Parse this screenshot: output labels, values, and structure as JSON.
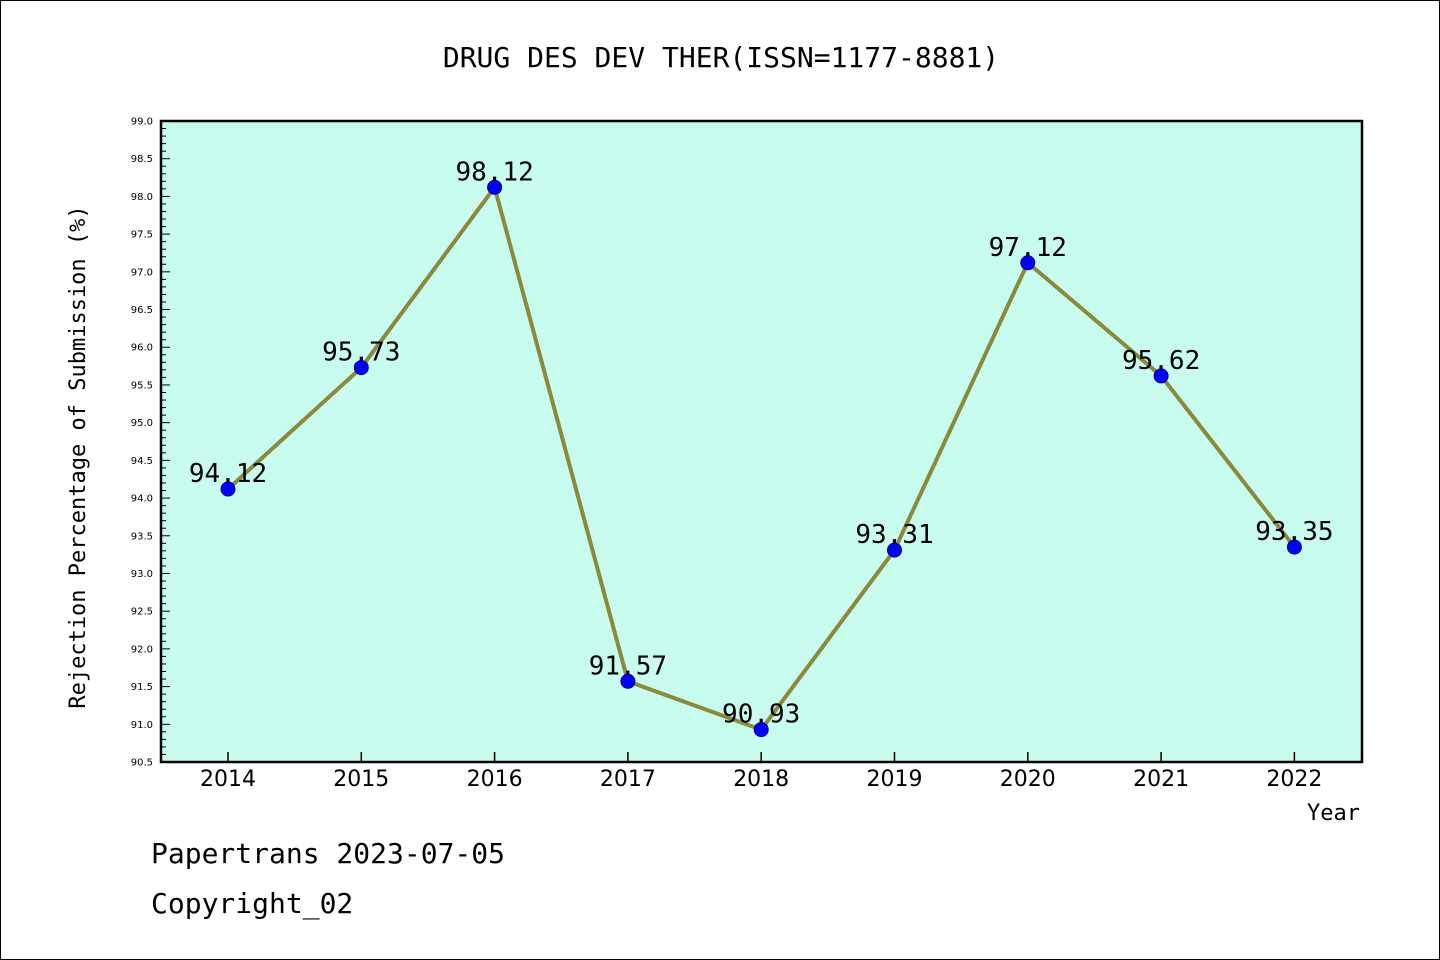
{
  "footer": {
    "line1": "Papertrans 2023-07-05",
    "line2": "Copyright_02"
  },
  "chart_data": {
    "type": "line",
    "title": "DRUG DES DEV THER(ISSN=1177-8881)",
    "xlabel": "Year",
    "ylabel": "Rejection Percentage of Submission (%)",
    "categories": [
      "2014",
      "2015",
      "2016",
      "2017",
      "2018",
      "2019",
      "2020",
      "2021",
      "2022"
    ],
    "series": [
      {
        "values": [
          94.12,
          95.73,
          98.12,
          91.57,
          90.93,
          93.31,
          97.12,
          95.62,
          93.35
        ],
        "data_labels": [
          "94.12",
          "95.73",
          "98.12",
          "91.57",
          "90.93",
          "93.31",
          "97.12",
          "95.62",
          "93.35"
        ]
      }
    ],
    "ylim": [
      90.5,
      99.0
    ],
    "y_ticks": [
      "90.5",
      "91.0",
      "91.5",
      "92.0",
      "92.5",
      "93.0",
      "93.5",
      "94.0",
      "94.5",
      "95.0",
      "95.5",
      "96.0",
      "96.5",
      "97.0",
      "97.5",
      "98.0",
      "98.5",
      "99.0"
    ],
    "grid": false,
    "colors": {
      "plot_background": "#c8fcee",
      "line": "#8b8a3a",
      "marker": "#0000ff"
    }
  }
}
